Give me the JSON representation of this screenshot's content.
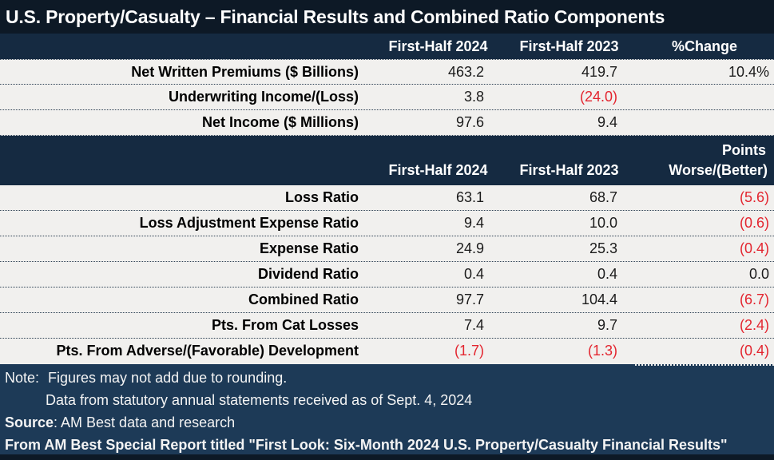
{
  "title": "U.S. Property/Casualty – Financial Results and Combined Ratio Components",
  "colors": {
    "title_bar": "#0d1926",
    "header_bar": "#152a41",
    "footer_bar": "#1d3a57",
    "row_background": "#f1f0ee",
    "negative_red": "#e3252f",
    "text_white": "#ffffff",
    "text_dark": "#1b1b1b"
  },
  "table1": {
    "headers": [
      "First-Half 2024",
      "First-Half 2023",
      "%Change"
    ],
    "rows": [
      {
        "label": "Net Written Premiums ($ Billions)",
        "values": [
          "463.2",
          "419.7",
          "10.4%"
        ]
      },
      {
        "label": "Underwriting Income/(Loss)",
        "values": [
          "3.8",
          "(24.0)",
          ""
        ]
      },
      {
        "label": "Net Income ($ Millions)",
        "values": [
          "97.6",
          "9.4",
          ""
        ]
      }
    ]
  },
  "table2": {
    "points_label": "Points",
    "headers": [
      "First-Half 2024",
      "First-Half 2023",
      "Worse/(Better)"
    ],
    "rows": [
      {
        "label": "Loss Ratio",
        "values": [
          "63.1",
          "68.7",
          "(5.6)"
        ]
      },
      {
        "label": "Loss Adjustment Expense Ratio",
        "values": [
          "9.4",
          "10.0",
          "(0.6)"
        ]
      },
      {
        "label": "Expense Ratio",
        "values": [
          "24.9",
          "25.3",
          "(0.4)"
        ]
      },
      {
        "label": "Dividend Ratio",
        "values": [
          "0.4",
          "0.4",
          "0.0"
        ]
      },
      {
        "label": "Combined Ratio",
        "values": [
          "97.7",
          "104.4",
          "(6.7)"
        ]
      },
      {
        "label": "Pts. From Cat Losses",
        "values": [
          "7.4",
          "9.7",
          "(2.4)"
        ]
      },
      {
        "label": "Pts. From Adverse/(Favorable) Development",
        "values": [
          "(1.7)",
          "(1.3)",
          "(0.4)"
        ]
      }
    ]
  },
  "footer": {
    "note_label": "Note:",
    "note_text": "Figures may not add due to rounding.",
    "note_line2": "Data from statutory annual statements received as of Sept. 4, 2024",
    "source_label": "Source",
    "source_text": ": AM Best data and research",
    "report_line": "From AM Best Special Report titled \"First Look: Six-Month 2024 U.S. Property/Casualty Financial Results\""
  },
  "chart_data": [
    {
      "type": "table",
      "title": "U.S. Property/Casualty – Financial Results and Combined Ratio Components",
      "columns": [
        "",
        "First-Half 2024",
        "First-Half 2023",
        "%Change"
      ],
      "rows": [
        [
          "Net Written Premiums ($ Billions)",
          463.2,
          419.7,
          "10.4%"
        ],
        [
          "Underwriting Income/(Loss)",
          3.8,
          -24.0,
          null
        ],
        [
          "Net Income ($ Millions)",
          97.6,
          9.4,
          null
        ]
      ],
      "notes": "Negative values shown in parentheses and red"
    },
    {
      "type": "table",
      "title": "Combined Ratio Components",
      "columns": [
        "",
        "First-Half 2024",
        "First-Half 2023",
        "Points Worse/(Better)"
      ],
      "rows": [
        [
          "Loss Ratio",
          63.1,
          68.7,
          -5.6
        ],
        [
          "Loss Adjustment Expense Ratio",
          9.4,
          10.0,
          -0.6
        ],
        [
          "Expense Ratio",
          24.9,
          25.3,
          -0.4
        ],
        [
          "Dividend Ratio",
          0.4,
          0.4,
          0.0
        ],
        [
          "Combined Ratio",
          97.7,
          104.4,
          -6.7
        ],
        [
          "Pts. From Cat Losses",
          7.4,
          9.7,
          -2.4
        ],
        [
          "Pts. From Adverse/(Favorable) Development",
          -1.7,
          -1.3,
          -0.4
        ]
      ],
      "notes": "Negative values shown in parentheses and red"
    }
  ]
}
